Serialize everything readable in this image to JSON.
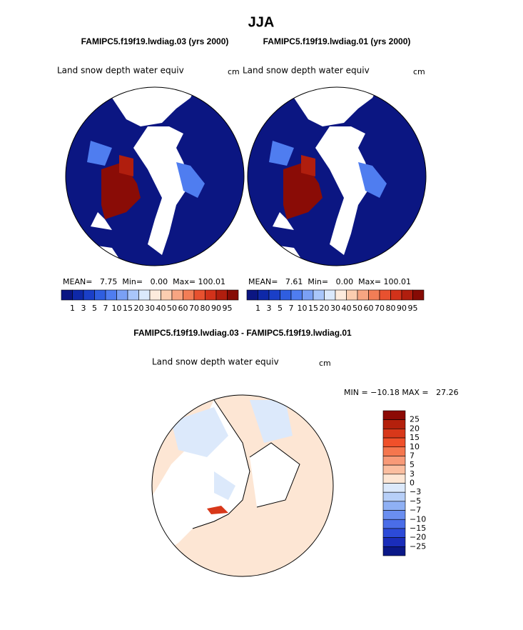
{
  "header": {
    "title": "JJA"
  },
  "panels": [
    {
      "subtitle": "FAMIPC5.f19f19.lwdiag.03 (yrs 2000)",
      "variable": "Land snow depth water equiv",
      "units": "cm",
      "stats": "MEAN=   7.75  Min=   0.00  Max= 100.01",
      "colorbar": {
        "colors": [
          "#0b1682",
          "#0e28a8",
          "#1a3fc8",
          "#2f5ee0",
          "#4f7df0",
          "#7aa0f5",
          "#a9c6fa",
          "#dbe9fc",
          "#fdebdd",
          "#fbcdb0",
          "#f7a582",
          "#f27d56",
          "#e8512f",
          "#d2321a",
          "#b01e0e",
          "#860b05"
        ],
        "labels": [
          "1",
          "3",
          "5",
          "7",
          "10",
          "15",
          "20",
          "30",
          "40",
          "50",
          "60",
          "70",
          "80",
          "90",
          "95"
        ]
      }
    },
    {
      "subtitle": "FAMIPC5.f19f19.lwdiag.01 (yrs 2000)",
      "variable": "Land snow depth water equiv",
      "units": "cm",
      "stats": "MEAN=   7.61  Min=   0.00  Max= 100.01",
      "colorbar": {
        "colors": [
          "#0b1682",
          "#0e28a8",
          "#1a3fc8",
          "#2f5ee0",
          "#4f7df0",
          "#7aa0f5",
          "#a9c6fa",
          "#dbe9fc",
          "#fdebdd",
          "#fbcdb0",
          "#f7a582",
          "#f27d56",
          "#e8512f",
          "#d2321a",
          "#b01e0e",
          "#860b05"
        ],
        "labels": [
          "1",
          "3",
          "5",
          "7",
          "10",
          "15",
          "20",
          "30",
          "40",
          "50",
          "60",
          "70",
          "80",
          "90",
          "95"
        ]
      }
    }
  ],
  "difference": {
    "subtitle": "FAMIPC5.f19f19.lwdiag.03 - FAMIPC5.f19f19.lwdiag.01",
    "variable": "Land snow depth water equiv",
    "units": "cm",
    "stats": "MIN = −10.18 MAX =   27.26",
    "colorbar": {
      "colors": [
        "#8c0a05",
        "#b4200c",
        "#d8381a",
        "#f0502a",
        "#f5764e",
        "#f89a78",
        "#fbbea0",
        "#fde6d4",
        "#dce9fb",
        "#b7cff8",
        "#8fb0f4",
        "#6a8ef0",
        "#4a6de8",
        "#2c4ad8",
        "#1a2dba",
        "#0b1888"
      ],
      "labels": [
        "25",
        "20",
        "15",
        "10",
        "7",
        "5",
        "3",
        "0",
        "−3",
        "−5",
        "−7",
        "−10",
        "−15",
        "−20",
        "−25"
      ]
    }
  }
}
